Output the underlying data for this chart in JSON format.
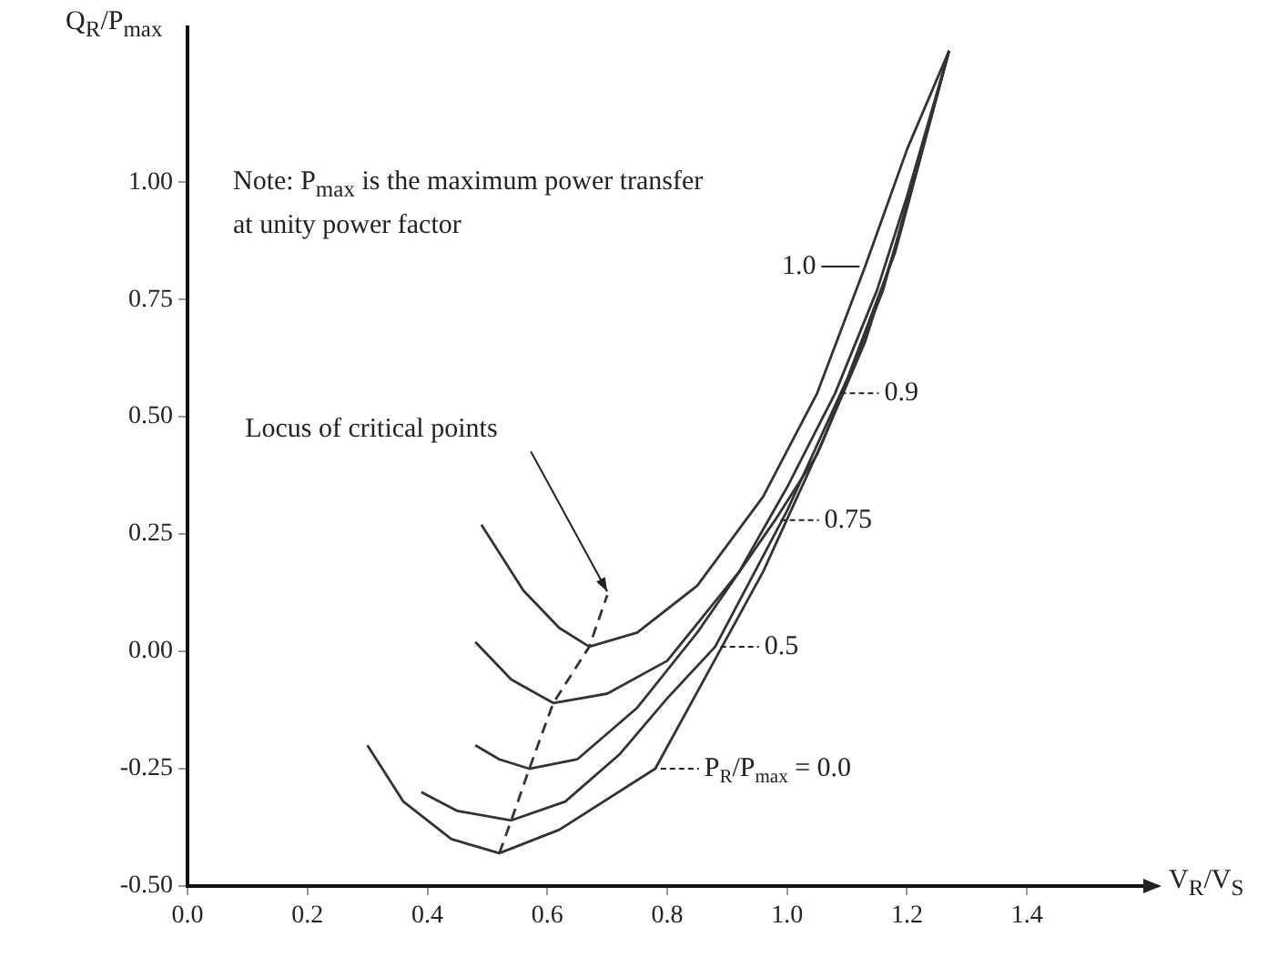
{
  "chart_data": {
    "type": "line",
    "xlabel": "V$_{R}$/V$_{S}$",
    "ylabel": "Q$_{R}$/P$_{max}$",
    "annotations": [
      "Note: P$_{max}$ is the maximum power transfer at unity power factor",
      {
        "text": "Locus of critical points",
        "x": 0.7,
        "y": 0.12
      }
    ],
    "xlim": [
      0,
      1.6
    ],
    "ylim": [
      -0.5,
      1.33
    ],
    "xticks": [
      {
        "value": 0,
        "label": "0.0"
      },
      0.2,
      0.4,
      0.6,
      0.8,
      {
        "value": 1,
        "label": "1.0"
      },
      1.2,
      1.4
    ],
    "yticks": [
      {
        "value": -0.5,
        "label": "-0.50"
      },
      -0.25,
      {
        "value": 0,
        "label": "0.00"
      },
      0.25,
      {
        "value": 0.5,
        "label": "0.50"
      },
      0.75,
      {
        "value": 1,
        "label": "1.00"
      }
    ],
    "grid": false,
    "legend": false,
    "marker": "none",
    "series": [
      {
        "name": "1.0",
        "color": "#333333",
        "x": [
          0.49,
          0.56,
          0.62,
          0.67,
          0.75,
          0.85,
          0.96,
          1.05,
          1.13,
          1.2,
          1.27
        ],
        "values": [
          0.27,
          0.13,
          0.05,
          0.01,
          0.04,
          0.14,
          0.33,
          0.55,
          0.82,
          1.07,
          1.28
        ]
      },
      {
        "name": "0.9",
        "color": "#333333",
        "x": [
          0.48,
          0.54,
          0.61,
          0.7,
          0.8,
          0.92,
          1.0,
          1.08,
          1.15,
          1.2,
          1.27
        ],
        "values": [
          0.02,
          -0.06,
          -0.11,
          -0.09,
          -0.02,
          0.17,
          0.35,
          0.55,
          0.77,
          0.97,
          1.28
        ]
      },
      {
        "name": "0.75",
        "color": "#333333",
        "x": [
          0.48,
          0.52,
          0.57,
          0.65,
          0.75,
          0.85,
          0.98,
          1.05,
          1.13,
          1.19,
          1.27
        ],
        "values": [
          -0.2,
          -0.23,
          -0.25,
          -0.23,
          -0.12,
          0.04,
          0.28,
          0.42,
          0.66,
          0.9,
          1.28
        ]
      },
      {
        "name": "0.5",
        "color": "#333333",
        "x": [
          0.39,
          0.45,
          0.54,
          0.63,
          0.72,
          0.8,
          0.88,
          1.0,
          1.1,
          1.18,
          1.27
        ],
        "values": [
          -0.3,
          -0.34,
          -0.36,
          -0.32,
          -0.22,
          -0.1,
          0.01,
          0.3,
          0.58,
          0.85,
          1.28
        ]
      },
      {
        "name": "P$_{R}$/P$_{max}$ = 0.0",
        "color": "#333333",
        "x": [
          0.3,
          0.36,
          0.44,
          0.52,
          0.62,
          0.78,
          0.96,
          1.06,
          1.16,
          1.27
        ],
        "values": [
          -0.2,
          -0.32,
          -0.4,
          -0.43,
          -0.38,
          -0.25,
          0.17,
          0.45,
          0.77,
          1.28
        ]
      },
      {
        "color": "#333333",
        "line_style": "dashed",
        "x": [
          0.52,
          0.54,
          0.57,
          0.61,
          0.67,
          0.7
        ],
        "values": [
          -0.43,
          -0.36,
          -0.25,
          -0.11,
          0.01,
          0.12
        ]
      }
    ]
  }
}
